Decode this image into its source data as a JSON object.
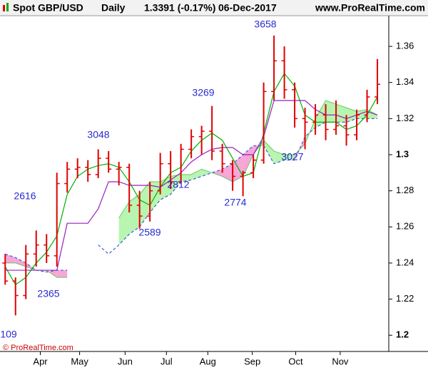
{
  "chart_data": {
    "type": "ohlc",
    "header": {
      "symbol": "Spot GBP/USD",
      "period": "Daily",
      "last": "1.3391 (-0.17%)",
      "date": "06-Dec-2017",
      "site": "www.ProRealTime.com"
    },
    "footer": "© ProRealTime.com",
    "color": "#e00000",
    "xlim": [
      0,
      37.6
    ],
    "xticks": [
      {
        "value": 3.9,
        "label": "Apr"
      },
      {
        "value": 7.7,
        "label": "May"
      },
      {
        "value": 12.1,
        "label": "Jun"
      },
      {
        "value": 16.1,
        "label": "Jul"
      },
      {
        "value": 20.1,
        "label": "Aug"
      },
      {
        "value": 24.4,
        "label": "Sep"
      },
      {
        "value": 28.6,
        "label": "Oct"
      },
      {
        "value": 32.9,
        "label": "Nov"
      }
    ],
    "ylim": [
      1.191,
      1.377
    ],
    "yticks": [
      1.2,
      1.22,
      1.24,
      1.26,
      1.28,
      1.3,
      1.32,
      1.34,
      1.36
    ],
    "annotations": [
      "109",
      "2616",
      "2365",
      "3048",
      "2589",
      "2812",
      "3269",
      "2774",
      "3658",
      "3027"
    ],
    "open": [
      1.24,
      1.23,
      1.222,
      1.245,
      1.25,
      1.244,
      1.284,
      1.292,
      1.293,
      1.289,
      1.298,
      1.292,
      1.293,
      1.272,
      1.266,
      1.28,
      1.295,
      1.285,
      1.303,
      1.31,
      1.313,
      1.302,
      1.295,
      1.288,
      1.29,
      1.297,
      1.335,
      1.352,
      1.336,
      1.32,
      1.318,
      1.322,
      1.314,
      1.316,
      1.311,
      1.322,
      1.332
    ],
    "high": [
      1.245,
      1.232,
      1.25,
      1.258,
      1.256,
      1.29,
      1.296,
      1.298,
      1.297,
      1.303,
      1.302,
      1.296,
      1.295,
      1.28,
      1.285,
      1.301,
      1.302,
      1.306,
      1.314,
      1.316,
      1.327,
      1.306,
      1.297,
      1.291,
      1.3,
      1.34,
      1.366,
      1.36,
      1.34,
      1.326,
      1.328,
      1.328,
      1.33,
      1.322,
      1.325,
      1.336,
      1.353
    ],
    "low": [
      1.228,
      1.211,
      1.22,
      1.238,
      1.24,
      1.238,
      1.279,
      1.287,
      1.285,
      1.287,
      1.29,
      1.283,
      1.268,
      1.259,
      1.263,
      1.278,
      1.281,
      1.284,
      1.298,
      1.3,
      1.297,
      1.29,
      1.28,
      1.277,
      1.287,
      1.295,
      1.33,
      1.331,
      1.315,
      1.303,
      1.311,
      1.308,
      1.311,
      1.305,
      1.308,
      1.318,
      1.328
    ],
    "close": [
      1.23,
      1.222,
      1.245,
      1.25,
      1.244,
      1.284,
      1.292,
      1.293,
      1.289,
      1.298,
      1.292,
      1.293,
      1.272,
      1.266,
      1.28,
      1.295,
      1.285,
      1.303,
      1.31,
      1.313,
      1.302,
      1.295,
      1.288,
      1.29,
      1.297,
      1.335,
      1.352,
      1.336,
      1.32,
      1.318,
      1.322,
      1.314,
      1.316,
      1.311,
      1.322,
      1.332,
      1.339
    ],
    "series": [
      {
        "color": "#00b000",
        "values": [
          1.238,
          1.228,
          1.232,
          1.24,
          1.246,
          1.255,
          1.278,
          1.288,
          1.292,
          1.294,
          1.295,
          1.293,
          1.285,
          1.275,
          1.272,
          1.282,
          1.29,
          1.293,
          1.302,
          1.308,
          1.312,
          1.308,
          1.298,
          1.288,
          1.29,
          1.312,
          1.335,
          1.345,
          1.338,
          1.322,
          1.318,
          1.318,
          1.318,
          1.314,
          1.316,
          1.322,
          1.332
        ]
      },
      {
        "color": "#9a1fbf",
        "values": [
          1.236,
          1.236,
          1.236,
          1.236,
          1.236,
          1.236,
          1.262,
          1.262,
          1.262,
          1.27,
          1.285,
          1.285,
          1.283,
          1.283,
          1.283,
          1.282,
          1.286,
          1.29,
          1.296,
          1.3,
          1.303,
          1.304,
          1.304,
          1.3,
          1.3,
          1.31,
          1.33,
          1.33,
          1.33,
          1.33,
          1.325,
          1.322,
          1.322,
          1.32,
          1.322,
          1.324,
          1.322
        ]
      }
    ],
    "cloud": {
      "up_color": "#b8f5b0",
      "down_color": "#f7a6d8",
      "edge_color": "#3f5fd8",
      "span_a": [
        1.24,
        1.24,
        1.238,
        1.236,
        1.236,
        1.232,
        1.232,
        null,
        null,
        null,
        null,
        1.265,
        1.274,
        1.278,
        1.285,
        1.285,
        1.288,
        1.289,
        1.289,
        1.292,
        1.29,
        1.288,
        1.285,
        1.288,
        1.3,
        1.308,
        1.302,
        1.3,
        1.3,
        1.306,
        1.32,
        1.33,
        1.328,
        1.326,
        1.324,
        1.325,
        1.322
      ],
      "span_b": [
        1.245,
        1.243,
        1.24,
        1.236,
        1.235,
        1.236,
        1.236,
        null,
        null,
        1.25,
        1.245,
        1.25,
        1.256,
        1.26,
        1.268,
        1.275,
        1.278,
        1.285,
        1.286,
        1.288,
        1.29,
        1.292,
        1.295,
        1.3,
        1.305,
        1.305,
        1.295,
        1.297,
        1.297,
        1.31,
        1.315,
        1.318,
        1.318,
        1.318,
        1.32,
        1.32,
        1.32
      ]
    }
  }
}
